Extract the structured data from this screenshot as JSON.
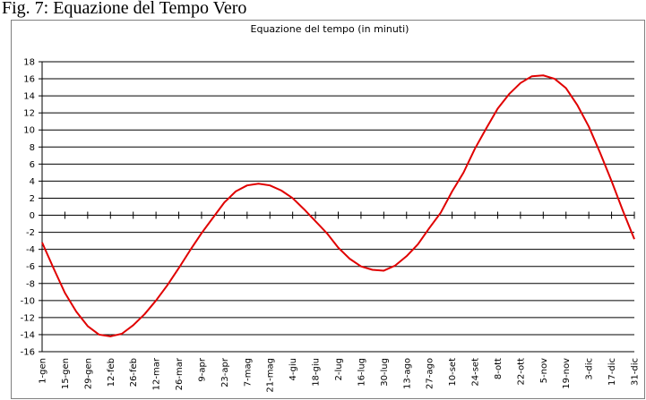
{
  "caption": "Fig. 7: Equazione del Tempo Vero",
  "chart_data": {
    "type": "line",
    "title": "Equazione del tempo (in minuti)",
    "categories": [
      "1-gen",
      null,
      "15-gen",
      null,
      "29-gen",
      null,
      "12-feb",
      null,
      "26-feb",
      null,
      "12-mar",
      null,
      "26-mar",
      null,
      "9-apr",
      null,
      "23-apr",
      null,
      "7-mag",
      null,
      "21-mag",
      null,
      "4-giu",
      null,
      "18-giu",
      null,
      "2-lug",
      null,
      "16-lug",
      null,
      "30-lug",
      null,
      "13-ago",
      null,
      "27-ago",
      null,
      "10-set",
      null,
      "24-set",
      null,
      "8-ott",
      null,
      "22-ott",
      null,
      "5-nov",
      null,
      "19-nov",
      null,
      "3-dic",
      null,
      "17-dic",
      null,
      "31-dic"
    ],
    "values": [
      -3.2,
      -6.2,
      -9.1,
      -11.3,
      -13.0,
      -14.0,
      -14.2,
      -13.9,
      -12.9,
      -11.6,
      -10.0,
      -8.2,
      -6.2,
      -4.1,
      -2.1,
      -0.3,
      1.5,
      2.8,
      3.5,
      3.7,
      3.5,
      2.9,
      2.0,
      0.7,
      -0.7,
      -2.1,
      -3.8,
      -5.1,
      -6.0,
      -6.4,
      -6.5,
      -5.9,
      -4.8,
      -3.4,
      -1.5,
      0.3,
      2.8,
      5.0,
      7.8,
      10.2,
      12.5,
      14.2,
      15.5,
      16.3,
      16.4,
      16.0,
      14.9,
      12.9,
      10.4,
      7.3,
      4.0,
      0.5,
      -2.8
    ],
    "color": "#e00000",
    "ylim": [
      -16,
      18
    ],
    "yticks": [
      -16,
      -14,
      -12,
      -10,
      -8,
      -6,
      -4,
      -2,
      0,
      2,
      4,
      6,
      8,
      10,
      12,
      14,
      16,
      18
    ],
    "grid": true
  }
}
